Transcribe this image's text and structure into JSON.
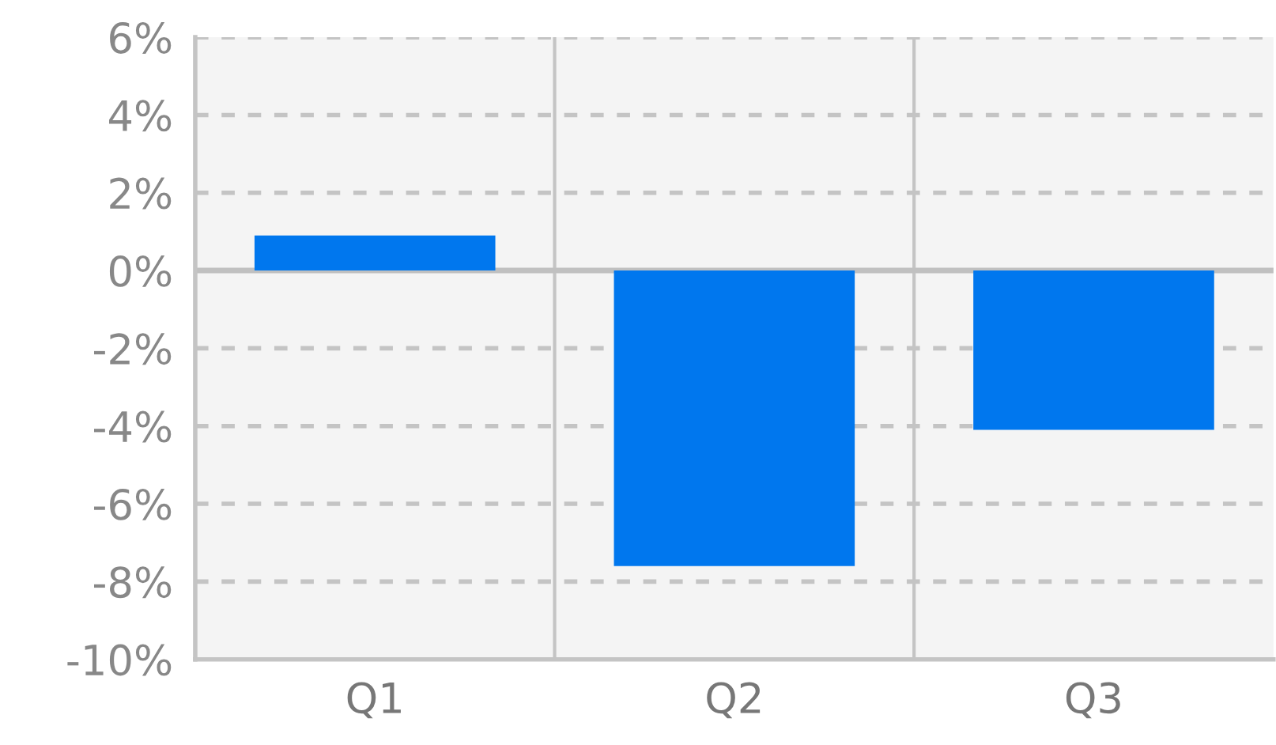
{
  "chart_data": {
    "type": "bar",
    "categories": [
      "Q1",
      "Q2",
      "Q3"
    ],
    "values": [
      0.9,
      -7.6,
      -4.1
    ],
    "color": "#0077ee",
    "ylim": [
      -10,
      6
    ],
    "yticks": [
      {
        "value": -10,
        "label": "-10%"
      },
      {
        "value": -8,
        "label": "-8%"
      },
      {
        "value": -6,
        "label": "-6%"
      },
      {
        "value": -4,
        "label": "-4%"
      },
      {
        "value": -2,
        "label": "-2%"
      },
      {
        "value": 0,
        "label": "0%"
      },
      {
        "value": 2,
        "label": "2%"
      },
      {
        "value": 4,
        "label": "4%"
      },
      {
        "value": 6,
        "label": "6%"
      }
    ],
    "grid": true,
    "legend": false
  }
}
